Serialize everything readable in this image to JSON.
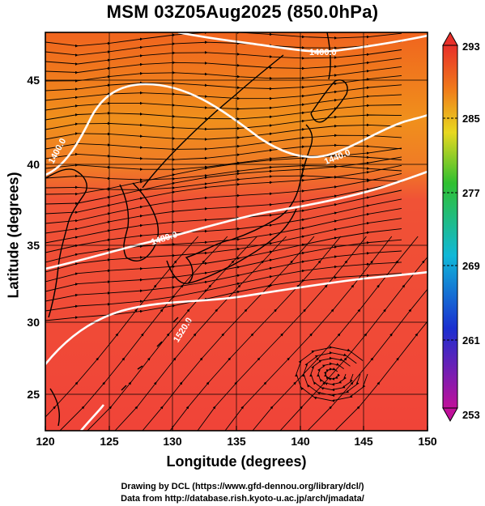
{
  "title": "MSM 03Z05Aug2025 (850.0hPa)",
  "axes": {
    "xlabel": "Longitude (degrees)",
    "ylabel": "Latitude  (degrees)",
    "xticks": [
      "120",
      "125",
      "130",
      "135",
      "140",
      "145",
      "150"
    ],
    "yticks": [
      "45",
      "40",
      "35",
      "30",
      "25"
    ]
  },
  "colorbar": {
    "ticks": [
      "293",
      "285",
      "277",
      "269",
      "261",
      "253"
    ],
    "colors": [
      "#c0109a",
      "#1a2fd0",
      "#10b8d8",
      "#20c040",
      "#e8e020",
      "#f08020",
      "#e8302a"
    ]
  },
  "contours": {
    "labels": [
      "1400.0",
      "1400.0",
      "1440.0",
      "1480.0",
      "1520.0"
    ]
  },
  "map_colors": {
    "warm_north": "#f08a1a",
    "warm_south": "#f04a38",
    "coastline": "#000000",
    "contour": "#ffffff"
  },
  "credits": [
    "Drawing by DCL (https://www.gfd-dennou.org/library/dcl/)",
    "Data from http://database.rish.kyoto-u.ac.jp/arch/jmadata/"
  ]
}
